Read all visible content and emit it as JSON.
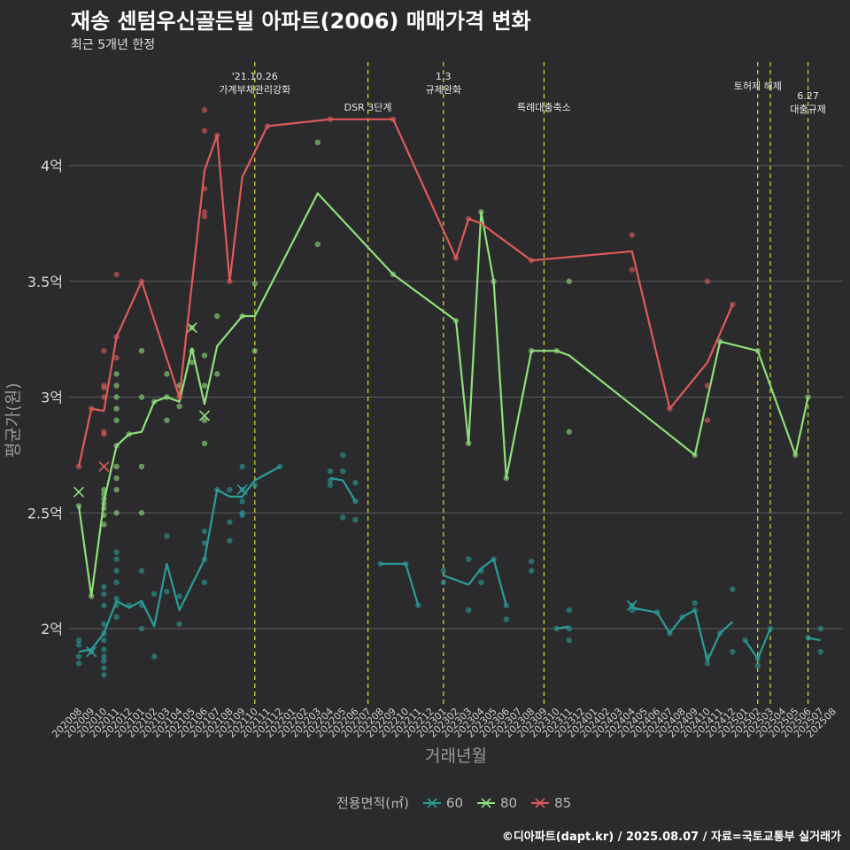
{
  "title": "재송 센텀우신골든빌 아파트(2006) 매매가격 변화",
  "subtitle": "최근 5개년 한정",
  "caption": "©디아파트(dapt.kr) / 2025.08.07 / 자료=국토교통부 실거래가",
  "legend": {
    "title": "전용면적(㎡)",
    "items": [
      {
        "label": "60",
        "color": "#2a9d9a"
      },
      {
        "label": "80",
        "color": "#8fe07a"
      },
      {
        "label": "85",
        "color": "#e05a5a"
      }
    ]
  },
  "chart_data": {
    "type": "line",
    "xlabel": "거래년월",
    "ylabel": "평균가(원)",
    "ylim": [
      1.7,
      4.45
    ],
    "yticks": [
      {
        "value": 2.0,
        "label": "2억"
      },
      {
        "value": 2.5,
        "label": "2.5억"
      },
      {
        "value": 3.0,
        "label": "3억"
      },
      {
        "value": 3.5,
        "label": "3.5억"
      },
      {
        "value": 4.0,
        "label": "4억"
      }
    ],
    "x_categories": [
      "202008",
      "202009",
      "202010",
      "202011",
      "202012",
      "202101",
      "202102",
      "202103",
      "202104",
      "202105",
      "202106",
      "202107",
      "202108",
      "202109",
      "202110",
      "202111",
      "202112",
      "202201",
      "202202",
      "202203",
      "202204",
      "202205",
      "202206",
      "202207",
      "202208",
      "202209",
      "202210",
      "202211",
      "202212",
      "202301",
      "202302",
      "202303",
      "202304",
      "202305",
      "202306",
      "202307",
      "202308",
      "202309",
      "202310",
      "202311",
      "202312",
      "202401",
      "202402",
      "202403",
      "202404",
      "202405",
      "202406",
      "202407",
      "202408",
      "202409",
      "202410",
      "202411",
      "202412",
      "202501",
      "202502",
      "202503",
      "202504",
      "202505",
      "202506",
      "202507",
      "202508"
    ],
    "events": [
      {
        "x": 14.0,
        "label": "'21.10.26\n가계부채관리강화",
        "row": 1
      },
      {
        "x": 23.0,
        "label": "DSR 3단계",
        "row": 2
      },
      {
        "x": 29.0,
        "label": "1.3\n규제완화",
        "row": 1
      },
      {
        "x": 37.0,
        "label": "특례대출축소",
        "row": 2
      },
      {
        "x": 54.0,
        "label": "토허제 해제",
        "row": 0
      },
      {
        "x": 55.0,
        "label": "",
        "row": 0
      },
      {
        "x": 58.0,
        "label": "6.27\n대출규제",
        "row": 3
      }
    ],
    "series": [
      {
        "name": "60",
        "color": "#2a9d9a",
        "line": [
          [
            0,
            1.9
          ],
          [
            1,
            1.91
          ],
          [
            2,
            1.98
          ],
          [
            3,
            2.12
          ],
          [
            4,
            2.09
          ],
          [
            5,
            2.12
          ],
          [
            6,
            2.01
          ],
          [
            7,
            2.28
          ],
          [
            8,
            2.08
          ],
          [
            10,
            2.3
          ],
          [
            11,
            2.6
          ],
          [
            12,
            2.57
          ],
          [
            13,
            2.57
          ],
          [
            14,
            2.64
          ],
          [
            16,
            2.7
          ],
          [
            null,
            null
          ],
          [
            20,
            2.65
          ],
          [
            21,
            2.64
          ],
          [
            22,
            2.55
          ],
          [
            null,
            null
          ],
          [
            24,
            2.28
          ],
          [
            26,
            2.28
          ],
          [
            27,
            2.1
          ],
          [
            null,
            null
          ],
          [
            29,
            2.23
          ],
          [
            31,
            2.19
          ],
          [
            32,
            2.26
          ],
          [
            33,
            2.3
          ],
          [
            34,
            2.1
          ],
          [
            null,
            null
          ],
          [
            38,
            2.0
          ],
          [
            39,
            2.01
          ],
          [
            null,
            null
          ],
          [
            44,
            2.09
          ],
          [
            46,
            2.07
          ],
          [
            47,
            1.98
          ],
          [
            48,
            2.05
          ],
          [
            49,
            2.08
          ],
          [
            50,
            1.86
          ],
          [
            51,
            1.98
          ],
          [
            52,
            2.03
          ],
          [
            null,
            null
          ],
          [
            53,
            1.95
          ],
          [
            54,
            1.87
          ],
          [
            55,
            2.0
          ],
          [
            null,
            null
          ],
          [
            58,
            1.96
          ],
          [
            59,
            1.95
          ]
        ],
        "points": [
          [
            0,
            1.85
          ],
          [
            0,
            1.88
          ],
          [
            0,
            1.93
          ],
          [
            0,
            1.95
          ],
          [
            1,
            1.9
          ],
          [
            2,
            1.8
          ],
          [
            2,
            1.83
          ],
          [
            2,
            1.86
          ],
          [
            2,
            1.88
          ],
          [
            2,
            1.91
          ],
          [
            2,
            1.95
          ],
          [
            2,
            1.98
          ],
          [
            2,
            2.02
          ],
          [
            2,
            2.1
          ],
          [
            2,
            2.15
          ],
          [
            2,
            2.18
          ],
          [
            3,
            2.05
          ],
          [
            3,
            2.1
          ],
          [
            3,
            2.13
          ],
          [
            3,
            2.2
          ],
          [
            3,
            2.25
          ],
          [
            3,
            2.3
          ],
          [
            3,
            2.33
          ],
          [
            4,
            2.1
          ],
          [
            5,
            2.0
          ],
          [
            5,
            2.1
          ],
          [
            5,
            2.25
          ],
          [
            6,
            1.88
          ],
          [
            6,
            2.15
          ],
          [
            7,
            2.16
          ],
          [
            7,
            2.4
          ],
          [
            8,
            2.02
          ],
          [
            8,
            2.14
          ],
          [
            10,
            2.2
          ],
          [
            10,
            2.3
          ],
          [
            10,
            2.37
          ],
          [
            10,
            2.42
          ],
          [
            11,
            2.6
          ],
          [
            12,
            2.38
          ],
          [
            12,
            2.46
          ],
          [
            12,
            2.6
          ],
          [
            13,
            2.49
          ],
          [
            13,
            2.5
          ],
          [
            13,
            2.55
          ],
          [
            13,
            2.6
          ],
          [
            13,
            2.7
          ],
          [
            14,
            2.62
          ],
          [
            16,
            2.7
          ],
          [
            20,
            2.62
          ],
          [
            20,
            2.64
          ],
          [
            20,
            2.68
          ],
          [
            21,
            2.48
          ],
          [
            21,
            2.68
          ],
          [
            21,
            2.75
          ],
          [
            22,
            2.47
          ],
          [
            22,
            2.55
          ],
          [
            22,
            2.63
          ],
          [
            24,
            2.28
          ],
          [
            26,
            2.28
          ],
          [
            27,
            2.1
          ],
          [
            29,
            2.2
          ],
          [
            29,
            2.25
          ],
          [
            31,
            2.08
          ],
          [
            31,
            2.3
          ],
          [
            32,
            2.2
          ],
          [
            32,
            2.25
          ],
          [
            33,
            2.3
          ],
          [
            34,
            2.04
          ],
          [
            34,
            2.1
          ],
          [
            36,
            2.25
          ],
          [
            36,
            2.29
          ],
          [
            38,
            2.0
          ],
          [
            39,
            1.95
          ],
          [
            39,
            2.0
          ],
          [
            39,
            2.08
          ],
          [
            44,
            2.08
          ],
          [
            44,
            2.1
          ],
          [
            46,
            2.07
          ],
          [
            47,
            1.98
          ],
          [
            48,
            2.05
          ],
          [
            49,
            2.08
          ],
          [
            49,
            2.11
          ],
          [
            50,
            1.85
          ],
          [
            50,
            1.88
          ],
          [
            51,
            1.98
          ],
          [
            52,
            1.9
          ],
          [
            52,
            2.17
          ],
          [
            53,
            1.95
          ],
          [
            54,
            1.84
          ],
          [
            54,
            1.87
          ],
          [
            55,
            2.0
          ],
          [
            58,
            1.96
          ],
          [
            59,
            1.9
          ],
          [
            59,
            2.0
          ]
        ],
        "crosses": [
          [
            1,
            1.9
          ],
          [
            13,
            2.6
          ],
          [
            44,
            2.1
          ]
        ]
      },
      {
        "name": "80",
        "color": "#8fe07a",
        "line": [
          [
            0,
            2.53
          ],
          [
            1,
            2.14
          ],
          [
            2,
            2.55
          ],
          [
            3,
            2.79
          ],
          [
            4,
            2.84
          ],
          [
            5,
            2.85
          ],
          [
            6,
            2.98
          ],
          [
            7,
            3.0
          ],
          [
            8,
            2.98
          ],
          [
            9,
            3.21
          ],
          [
            10,
            2.97
          ],
          [
            11,
            3.22
          ],
          [
            13,
            3.35
          ],
          [
            14,
            3.35
          ],
          [
            19,
            3.88
          ],
          [
            25,
            3.53
          ],
          [
            30,
            3.33
          ],
          [
            31,
            2.8
          ],
          [
            32,
            3.8
          ],
          [
            33,
            3.5
          ],
          [
            34,
            2.65
          ],
          [
            36,
            3.2
          ],
          [
            38,
            3.2
          ],
          [
            39,
            3.18
          ],
          [
            49,
            2.75
          ],
          [
            51,
            3.24
          ],
          [
            54,
            3.2
          ],
          [
            57,
            2.75
          ],
          [
            58,
            3.0
          ]
        ],
        "points": [
          [
            0,
            2.53
          ],
          [
            1,
            2.14
          ],
          [
            2,
            2.45
          ],
          [
            2,
            2.49
          ],
          [
            2,
            2.52
          ],
          [
            2,
            2.54
          ],
          [
            2,
            2.56
          ],
          [
            2,
            2.58
          ],
          [
            2,
            2.6
          ],
          [
            3,
            2.5
          ],
          [
            3,
            2.6
          ],
          [
            3,
            2.65
          ],
          [
            3,
            2.7
          ],
          [
            3,
            2.79
          ],
          [
            3,
            2.9
          ],
          [
            3,
            2.95
          ],
          [
            3,
            3.0
          ],
          [
            3,
            3.05
          ],
          [
            3,
            3.1
          ],
          [
            4,
            2.84
          ],
          [
            5,
            2.5
          ],
          [
            5,
            2.7
          ],
          [
            5,
            3.0
          ],
          [
            5,
            3.2
          ],
          [
            6,
            2.98
          ],
          [
            7,
            2.9
          ],
          [
            7,
            3.0
          ],
          [
            7,
            3.1
          ],
          [
            8,
            2.96
          ],
          [
            8,
            3.05
          ],
          [
            9,
            3.15
          ],
          [
            9,
            3.2
          ],
          [
            9,
            3.3
          ],
          [
            10,
            2.8
          ],
          [
            10,
            2.9
          ],
          [
            10,
            3.05
          ],
          [
            10,
            3.18
          ],
          [
            11,
            3.1
          ],
          [
            11,
            3.35
          ],
          [
            13,
            3.35
          ],
          [
            14,
            3.2
          ],
          [
            14,
            3.49
          ],
          [
            19,
            3.66
          ],
          [
            19,
            4.1
          ],
          [
            25,
            3.53
          ],
          [
            30,
            3.33
          ],
          [
            31,
            2.8
          ],
          [
            32,
            3.8
          ],
          [
            33,
            3.5
          ],
          [
            34,
            2.65
          ],
          [
            36,
            3.2
          ],
          [
            38,
            3.2
          ],
          [
            39,
            2.85
          ],
          [
            39,
            3.5
          ],
          [
            49,
            2.75
          ],
          [
            51,
            3.24
          ],
          [
            54,
            3.2
          ],
          [
            57,
            2.75
          ],
          [
            58,
            3.0
          ]
        ],
        "crosses": [
          [
            0,
            2.59
          ],
          [
            9,
            3.3
          ],
          [
            10,
            2.92
          ]
        ]
      },
      {
        "name": "85",
        "color": "#e05a5a",
        "line": [
          [
            0,
            2.7
          ],
          [
            1,
            2.95
          ],
          [
            2,
            2.94
          ],
          [
            3,
            3.26
          ],
          [
            5,
            3.5
          ],
          [
            8,
            3.0
          ],
          [
            10,
            3.98
          ],
          [
            11,
            4.13
          ],
          [
            12,
            3.5
          ],
          [
            13,
            3.95
          ],
          [
            15,
            4.17
          ],
          [
            20,
            4.2
          ],
          [
            25,
            4.2
          ],
          [
            30,
            3.6
          ],
          [
            31,
            3.77
          ],
          [
            32,
            3.75
          ],
          [
            36,
            3.59
          ],
          [
            44,
            3.63
          ],
          [
            47,
            2.95
          ],
          [
            50,
            3.15
          ],
          [
            52,
            3.4
          ]
        ],
        "points": [
          [
            0,
            2.7
          ],
          [
            1,
            2.95
          ],
          [
            2,
            2.84
          ],
          [
            2,
            2.85
          ],
          [
            2,
            3.0
          ],
          [
            2,
            3.04
          ],
          [
            2,
            3.05
          ],
          [
            2,
            3.2
          ],
          [
            3,
            3.17
          ],
          [
            3,
            3.26
          ],
          [
            3,
            3.53
          ],
          [
            5,
            3.5
          ],
          [
            8,
            3.0
          ],
          [
            10,
            3.78
          ],
          [
            10,
            3.8
          ],
          [
            10,
            3.9
          ],
          [
            10,
            4.15
          ],
          [
            10,
            4.24
          ],
          [
            11,
            4.13
          ],
          [
            12,
            3.5
          ],
          [
            15,
            4.17
          ],
          [
            20,
            4.2
          ],
          [
            25,
            4.2
          ],
          [
            30,
            3.6
          ],
          [
            31,
            3.77
          ],
          [
            36,
            3.59
          ],
          [
            44,
            3.55
          ],
          [
            44,
            3.7
          ],
          [
            47,
            2.95
          ],
          [
            50,
            2.9
          ],
          [
            50,
            3.05
          ],
          [
            50,
            3.5
          ],
          [
            52,
            3.4
          ]
        ],
        "crosses": [
          [
            2,
            2.7
          ]
        ]
      }
    ]
  }
}
